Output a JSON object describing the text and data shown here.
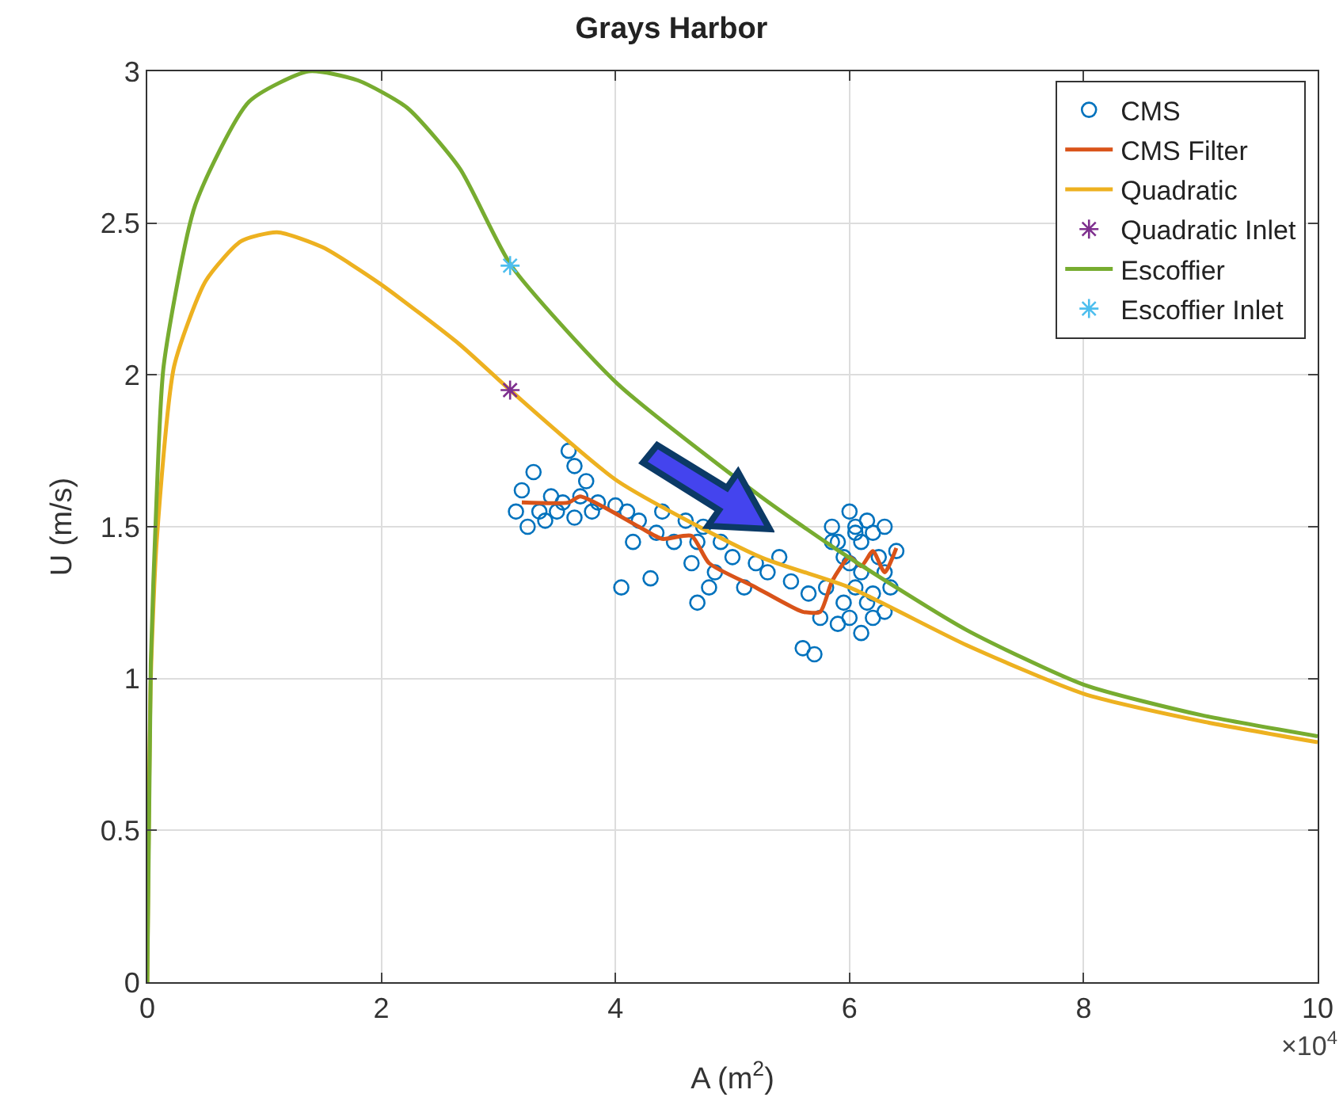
{
  "chart_data": {
    "type": "line",
    "title": "Grays Harbor",
    "xlabel": "A (m$^{2}$)",
    "ylabel": "U (m/s)",
    "annotations": [
      "×10$^{4}$"
    ],
    "xlim": [
      0,
      10
    ],
    "ylim": [
      0,
      3
    ],
    "xticks": [
      0,
      2,
      4,
      6,
      8,
      10
    ],
    "yticks": [
      0,
      0.5,
      1,
      1.5,
      2,
      2.5,
      3
    ],
    "grid": true,
    "legend": "top right",
    "series": [
      {
        "name": "CMS",
        "type": "scatter",
        "marker": "circle",
        "color": "#0072bd",
        "x": [
          3.15,
          3.2,
          3.25,
          3.3,
          3.35,
          3.4,
          3.45,
          3.5,
          3.55,
          3.6,
          3.65,
          3.65,
          3.7,
          3.75,
          3.8,
          3.85,
          4.0,
          4.05,
          4.1,
          4.15,
          4.2,
          4.3,
          4.35,
          4.4,
          4.5,
          4.6,
          4.65,
          4.7,
          4.7,
          4.75,
          4.8,
          4.85,
          4.9,
          5.0,
          5.1,
          5.2,
          5.3,
          5.4,
          5.5,
          5.6,
          5.65,
          5.7,
          5.75,
          5.8,
          5.85,
          5.9,
          5.95,
          6.0,
          6.0,
          6.05,
          6.05,
          6.1,
          6.1,
          6.15,
          6.15,
          6.2,
          6.2,
          6.25,
          6.3,
          6.3,
          6.35,
          6.4,
          5.9,
          6.0,
          6.1,
          6.2,
          6.3,
          5.85,
          5.95,
          6.05
        ],
        "values": [
          1.55,
          1.62,
          1.5,
          1.68,
          1.55,
          1.52,
          1.6,
          1.55,
          1.58,
          1.75,
          1.53,
          1.7,
          1.6,
          1.65,
          1.55,
          1.58,
          1.57,
          1.3,
          1.55,
          1.45,
          1.52,
          1.33,
          1.48,
          1.55,
          1.45,
          1.52,
          1.38,
          1.25,
          1.45,
          1.5,
          1.3,
          1.35,
          1.45,
          1.4,
          1.3,
          1.38,
          1.35,
          1.4,
          1.32,
          1.1,
          1.28,
          1.08,
          1.2,
          1.3,
          1.5,
          1.45,
          1.25,
          1.55,
          1.2,
          1.5,
          1.3,
          1.45,
          1.15,
          1.52,
          1.25,
          1.48,
          1.2,
          1.4,
          1.35,
          1.5,
          1.3,
          1.42,
          1.18,
          1.38,
          1.35,
          1.28,
          1.22,
          1.45,
          1.4,
          1.48
        ]
      },
      {
        "name": "CMS Filter",
        "color": "#d95319",
        "x": [
          3.2,
          3.6,
          3.7,
          4.2,
          4.4,
          4.65,
          4.8,
          5.2,
          5.6,
          5.75,
          5.85,
          6.0,
          6.1,
          6.2,
          6.3,
          6.4
        ],
        "values": [
          1.58,
          1.58,
          1.6,
          1.5,
          1.46,
          1.47,
          1.38,
          1.3,
          1.22,
          1.22,
          1.32,
          1.4,
          1.37,
          1.42,
          1.35,
          1.43
        ]
      },
      {
        "name": "Quadratic",
        "color": "#edb120",
        "x": [
          0,
          0.03,
          0.08,
          0.23,
          0.5,
          0.8,
          1.11,
          1.5,
          1.99,
          2.67,
          3.1,
          4.02,
          5.24,
          6.0,
          7.0,
          8.0,
          9.0,
          10.0
        ],
        "values": [
          0,
          1.0,
          1.45,
          2.03,
          2.31,
          2.44,
          2.47,
          2.42,
          2.3,
          2.1,
          1.95,
          1.65,
          1.4,
          1.3,
          1.11,
          0.95,
          0.86,
          0.79
        ]
      },
      {
        "name": "Quadratic Inlet",
        "type": "scatter",
        "marker": "cross",
        "color": "#7e2f8e",
        "x": [
          3.1
        ],
        "values": [
          1.95
        ]
      },
      {
        "name": "Escoffier",
        "color": "#77ac30",
        "x": [
          0,
          0.03,
          0.08,
          0.14,
          0.41,
          0.87,
          1.38,
          1.8,
          2.22,
          2.67,
          3.11,
          4.02,
          5.24,
          5.91,
          7.0,
          8.0,
          9.0,
          10.0
        ],
        "values": [
          0,
          1.05,
          1.6,
          2.03,
          2.56,
          2.9,
          3.0,
          2.97,
          2.88,
          2.68,
          2.36,
          1.97,
          1.6,
          1.42,
          1.16,
          0.98,
          0.88,
          0.81
        ]
      },
      {
        "name": "Escoffier Inlet",
        "type": "scatter",
        "marker": "cross",
        "color": "#4dbeee",
        "x": [
          3.1
        ],
        "values": [
          2.36
        ]
      }
    ]
  }
}
